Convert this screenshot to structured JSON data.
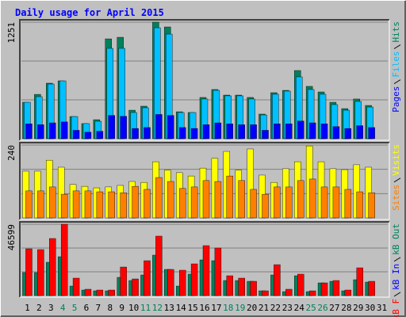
{
  "chart_data": [
    {
      "type": "bar",
      "title": "Daily usage for April 2015",
      "categories": [
        "1",
        "2",
        "3",
        "4",
        "5",
        "6",
        "7",
        "8",
        "9",
        "10",
        "11",
        "12",
        "13",
        "14",
        "15",
        "16",
        "17",
        "18",
        "19",
        "20",
        "21",
        "22",
        "23",
        "24",
        "25",
        "26",
        "27",
        "28",
        "29",
        "30",
        "31"
      ],
      "category_colors": [
        "#000000",
        "#000000",
        "#000000",
        "#00805c",
        "#00805c",
        "#000000",
        "#000000",
        "#000000",
        "#000000",
        "#000000",
        "#00805c",
        "#00805c",
        "#000000",
        "#000000",
        "#000000",
        "#000000",
        "#000000",
        "#00805c",
        "#00805c",
        "#000000",
        "#000000",
        "#000000",
        "#000000",
        "#000000",
        "#00805c",
        "#00805c",
        "#000000",
        "#000000",
        "#000000",
        "#000000",
        "#000000"
      ],
      "ylim": [
        0,
        1251
      ],
      "yticks": [
        1251
      ],
      "series": [
        {
          "name": "Hits",
          "color": "#00805c",
          "values": [
            391,
            476,
            596,
            621,
            238,
            162,
            204,
            1072,
            1089,
            306,
            349,
            1251,
            1200,
            289,
            281,
            443,
            528,
            468,
            468,
            443,
            264,
            494,
            519,
            732,
            562,
            502,
            391,
            323,
            426,
            357,
            null
          ]
        },
        {
          "name": "Files",
          "color": "#00c0ff",
          "values": [
            391,
            451,
            587,
            621,
            238,
            162,
            187,
            970,
            970,
            281,
            332,
            1191,
            1123,
            281,
            281,
            426,
            519,
            460,
            460,
            426,
            255,
            477,
            511,
            664,
            528,
            477,
            366,
            306,
            400,
            340,
            null
          ]
        },
        {
          "name": "Pages",
          "color": "#0000ff",
          "values": [
            160,
            150,
            170,
            180,
            90,
            70,
            80,
            250,
            240,
            110,
            120,
            260,
            250,
            120,
            110,
            150,
            170,
            160,
            150,
            150,
            90,
            160,
            160,
            190,
            170,
            160,
            130,
            110,
            140,
            120,
            null
          ]
        }
      ]
    },
    {
      "type": "bar",
      "categories": [
        "1",
        "2",
        "3",
        "4",
        "5",
        "6",
        "7",
        "8",
        "9",
        "10",
        "11",
        "12",
        "13",
        "14",
        "15",
        "16",
        "17",
        "18",
        "19",
        "20",
        "21",
        "22",
        "23",
        "24",
        "25",
        "26",
        "27",
        "28",
        "29",
        "30",
        "31"
      ],
      "ylim": [
        0,
        240
      ],
      "yticks": [
        240
      ],
      "series": [
        {
          "name": "Visits",
          "color": "#ffff00",
          "values": [
            154,
            154,
            190,
            167,
            110,
            104,
            99,
            102,
            107,
            120,
            117,
            185,
            157,
            149,
            138,
            164,
            196,
            219,
            157,
            227,
            141,
            117,
            162,
            185,
            237,
            185,
            162,
            159,
            175,
            167,
            null
          ]
        },
        {
          "name": "Sites",
          "color": "#ff8000",
          "values": [
            89,
            89,
            102,
            78,
            89,
            89,
            86,
            86,
            83,
            104,
            94,
            133,
            120,
            97,
            102,
            123,
            120,
            138,
            123,
            94,
            78,
            102,
            102,
            123,
            128,
            102,
            102,
            94,
            86,
            83,
            null
          ]
        }
      ]
    },
    {
      "type": "bar",
      "categories": [
        "1",
        "2",
        "3",
        "4",
        "5",
        "6",
        "7",
        "8",
        "9",
        "10",
        "11",
        "12",
        "13",
        "14",
        "15",
        "16",
        "17",
        "18",
        "19",
        "20",
        "21",
        "22",
        "23",
        "24",
        "25",
        "26",
        "27",
        "28",
        "29",
        "30",
        "31"
      ],
      "ylim": [
        0,
        46599
      ],
      "yticks": [
        46599
      ],
      "series": [
        {
          "name": "kB Out",
          "color": "#00805c",
          "values": [
            15022,
            15022,
            21756,
            25382,
            6216,
            3626,
            3108,
            3108,
            11914,
            9842,
            13468,
            26418,
            17094,
            6216,
            13986,
            23310,
            22792,
            9842,
            9842,
            9324,
            3108,
            13468,
            2590,
            12950,
            2590,
            8288,
            9324,
            3108,
            10360,
            8806,
            null
          ]
        },
        {
          "name": "kB In",
          "color": "#0000ff",
          "values": [
            0,
            0,
            0,
            0,
            0,
            0,
            0,
            0,
            0,
            0,
            0,
            0,
            0,
            0,
            0,
            0,
            0,
            0,
            0,
            0,
            0,
            0,
            0,
            0,
            0,
            0,
            0,
            0,
            0,
            0,
            null
          ]
        },
        {
          "name": "kB F",
          "color": "#ff0000",
          "values": [
            30562,
            30044,
            37296,
            46599,
            11396,
            4144,
            3626,
            3626,
            18648,
            10878,
            22792,
            38850,
            17094,
            16576,
            20720,
            32634,
            31080,
            12950,
            11396,
            9324,
            3108,
            20202,
            4144,
            13986,
            3108,
            8288,
            9842,
            3626,
            18130,
            9324,
            null
          ]
        }
      ]
    }
  ]
}
